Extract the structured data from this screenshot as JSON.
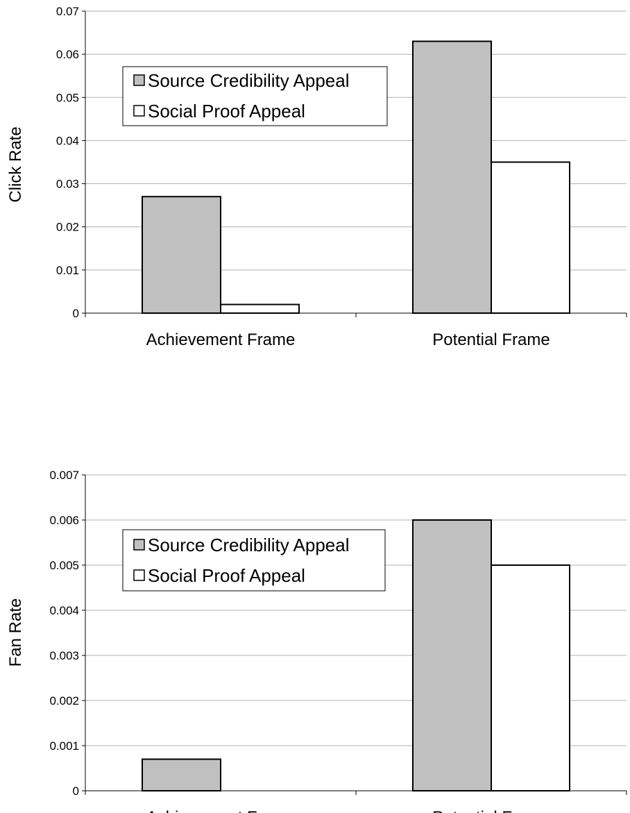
{
  "colors": {
    "source_fill": "#c0c0c0",
    "social_fill": "#ffffff",
    "bar_stroke": "#000000",
    "gridline": "#b0b0b0"
  },
  "chart_data": [
    {
      "type": "bar",
      "categories": [
        "Achievement Frame",
        "Potential Frame"
      ],
      "series": [
        {
          "name": "Source Credibility Appeal",
          "values": [
            0.027,
            0.063
          ]
        },
        {
          "name": "Social Proof Appeal",
          "values": [
            0.002,
            0.035
          ]
        }
      ],
      "title": "",
      "xlabel": "",
      "ylabel": "Click Rate",
      "ylim": [
        0,
        0.07
      ],
      "yticks": [
        "0",
        "0.01",
        "0.02",
        "0.03",
        "0.04",
        "0.05",
        "0.06",
        "0.07"
      ],
      "grid": true,
      "legend_position": "top-left"
    },
    {
      "type": "bar",
      "categories": [
        "Achievement Frame",
        "Potential Frame"
      ],
      "series": [
        {
          "name": "Source Credibility Appeal",
          "values": [
            0.0007,
            0.006
          ]
        },
        {
          "name": "Social Proof Appeal",
          "values": [
            0,
            0.005
          ]
        }
      ],
      "title": "",
      "xlabel": "",
      "ylabel": "Fan Rate",
      "ylim": [
        0,
        0.007
      ],
      "yticks": [
        "0",
        "0.001",
        "0.002",
        "0.003",
        "0.004",
        "0.005",
        "0.006",
        "0.007"
      ],
      "grid": true,
      "legend_position": "top-left"
    }
  ]
}
